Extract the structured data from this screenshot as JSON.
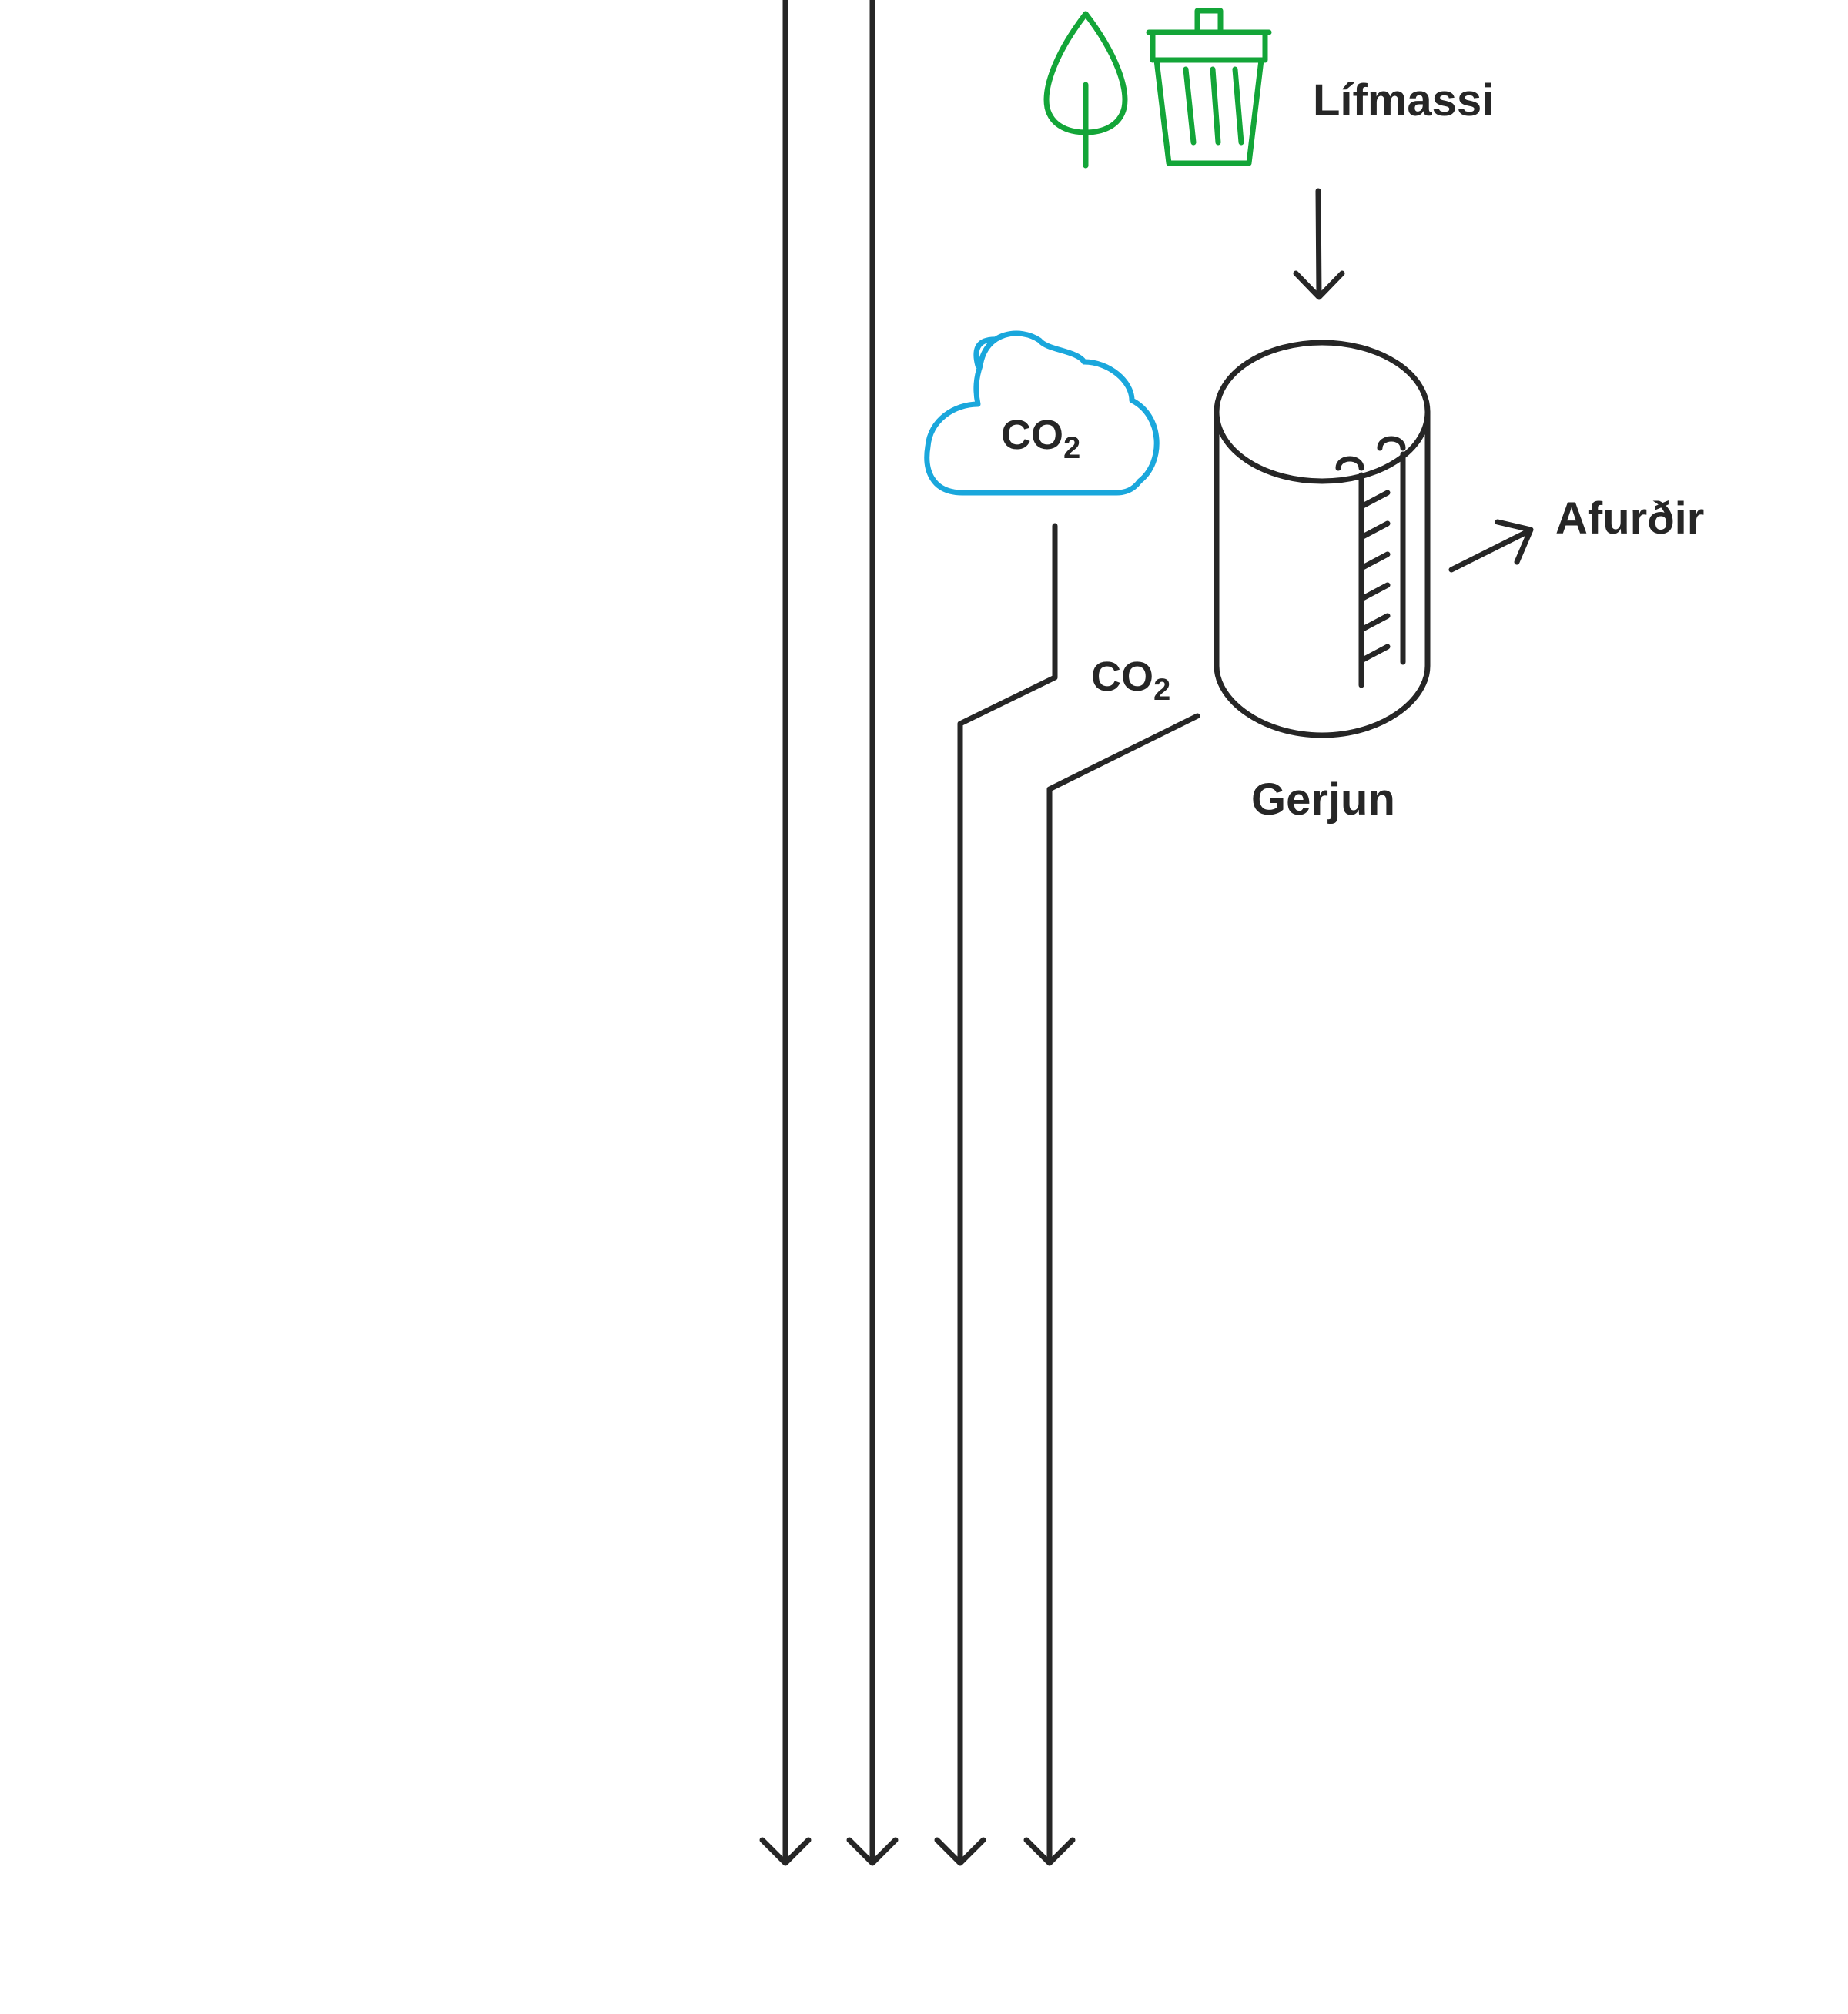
{
  "labels": {
    "biomass": "Lífmassi",
    "fermentation": "Gerjun",
    "products": "Afurðir",
    "cloud_co2_main": "CO",
    "cloud_co2_sub": "2",
    "flow_co2_main": "CO",
    "flow_co2_sub": "2"
  },
  "icons": {
    "biomass_leaf": "leaf-icon",
    "biomass_bin": "trash-bin-icon",
    "co2_cloud": "cloud-icon",
    "fermentation_tank": "tank-icon"
  },
  "colors": {
    "line": "#262626",
    "biomass_icon": "#13a538",
    "cloud_outline": "#1aa7dc",
    "background": "#ffffff"
  }
}
